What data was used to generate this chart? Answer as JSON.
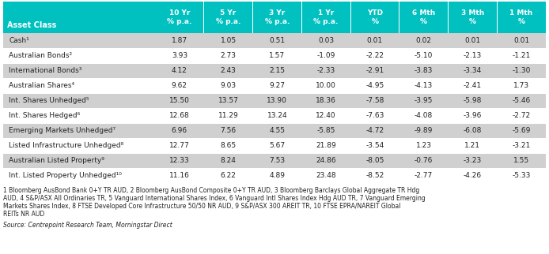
{
  "header_bg_color": "#00C0C0",
  "header_text_color": "#FFFFFF",
  "col_header": [
    "10 Yr\n% p.a.",
    "5 Yr\n% p.a.",
    "3 Yr\n% p.a.",
    "1 Yr\n% p.a.",
    "YTD\n%",
    "6 Mth\n%",
    "3 Mth\n%",
    "1 Mth\n%"
  ],
  "asset_class_label": "Asset Class",
  "row_labels": [
    "Cash¹",
    "Australian Bonds²",
    "International Bonds³",
    "Australian Shares⁴",
    "Int. Shares Unhedged⁵",
    "Int. Shares Hedged⁶",
    "Emerging Markets Unhedged⁷",
    "Listed Infrastructure Unhedged⁸",
    "Australian Listed Property⁹",
    "Int. Listed Property Unhedged¹⁰"
  ],
  "data": [
    [
      1.87,
      1.05,
      0.51,
      0.03,
      0.01,
      0.02,
      0.01,
      0.01
    ],
    [
      3.93,
      2.73,
      1.57,
      -1.09,
      -2.22,
      -5.1,
      -2.13,
      -1.21
    ],
    [
      4.12,
      2.43,
      2.15,
      -2.33,
      -2.91,
      -3.83,
      -3.34,
      -1.3
    ],
    [
      9.62,
      9.03,
      9.27,
      10.0,
      -4.95,
      -4.13,
      -2.41,
      1.73
    ],
    [
      15.5,
      13.57,
      13.9,
      18.36,
      -7.58,
      -3.95,
      -5.98,
      -5.46
    ],
    [
      12.68,
      11.29,
      13.24,
      12.4,
      -7.63,
      -4.08,
      -3.96,
      -2.72
    ],
    [
      6.96,
      7.56,
      4.55,
      -5.85,
      -4.72,
      -9.89,
      -6.08,
      -5.69
    ],
    [
      12.77,
      8.65,
      5.67,
      21.89,
      -3.54,
      1.23,
      1.21,
      -3.21
    ],
    [
      12.33,
      8.24,
      7.53,
      24.86,
      -8.05,
      -0.76,
      -3.23,
      1.55
    ],
    [
      11.16,
      6.22,
      4.89,
      23.48,
      -8.52,
      -2.77,
      -4.26,
      -5.33
    ]
  ],
  "row_bg_even": "#D0D0D0",
  "row_bg_odd": "#FFFFFF",
  "divider_color": "#FFFFFF",
  "footnote_line1": "1 Bloomberg AusBond Bank 0+Y TR AUD, 2 Bloomberg AusBond Composite 0+Y TR AUD, 3 Bloomberg Barclays Global Aggregate TR Hdg",
  "footnote_line2": "AUD, 4 S&P/ASX All Ordinaries TR, 5 Vanguard International Shares Index, 6 Vanguard Intl Shares Index Hdg AUD TR, 7 Vanguard Emerging",
  "footnote_line3": "Markets Shares Index, 8 FTSE Developed Core Infrastructure 50/50 NR AUD, 9 S&P/ASX 300 AREIT TR, 10 FTSE EPRA/NAREIT Global",
  "footnote_line4": "REITs NR AUD",
  "source": "Source: Centrepoint Research Team, Morningstar Direct",
  "fig_width": 6.94,
  "fig_height": 3.22,
  "dpi": 100
}
